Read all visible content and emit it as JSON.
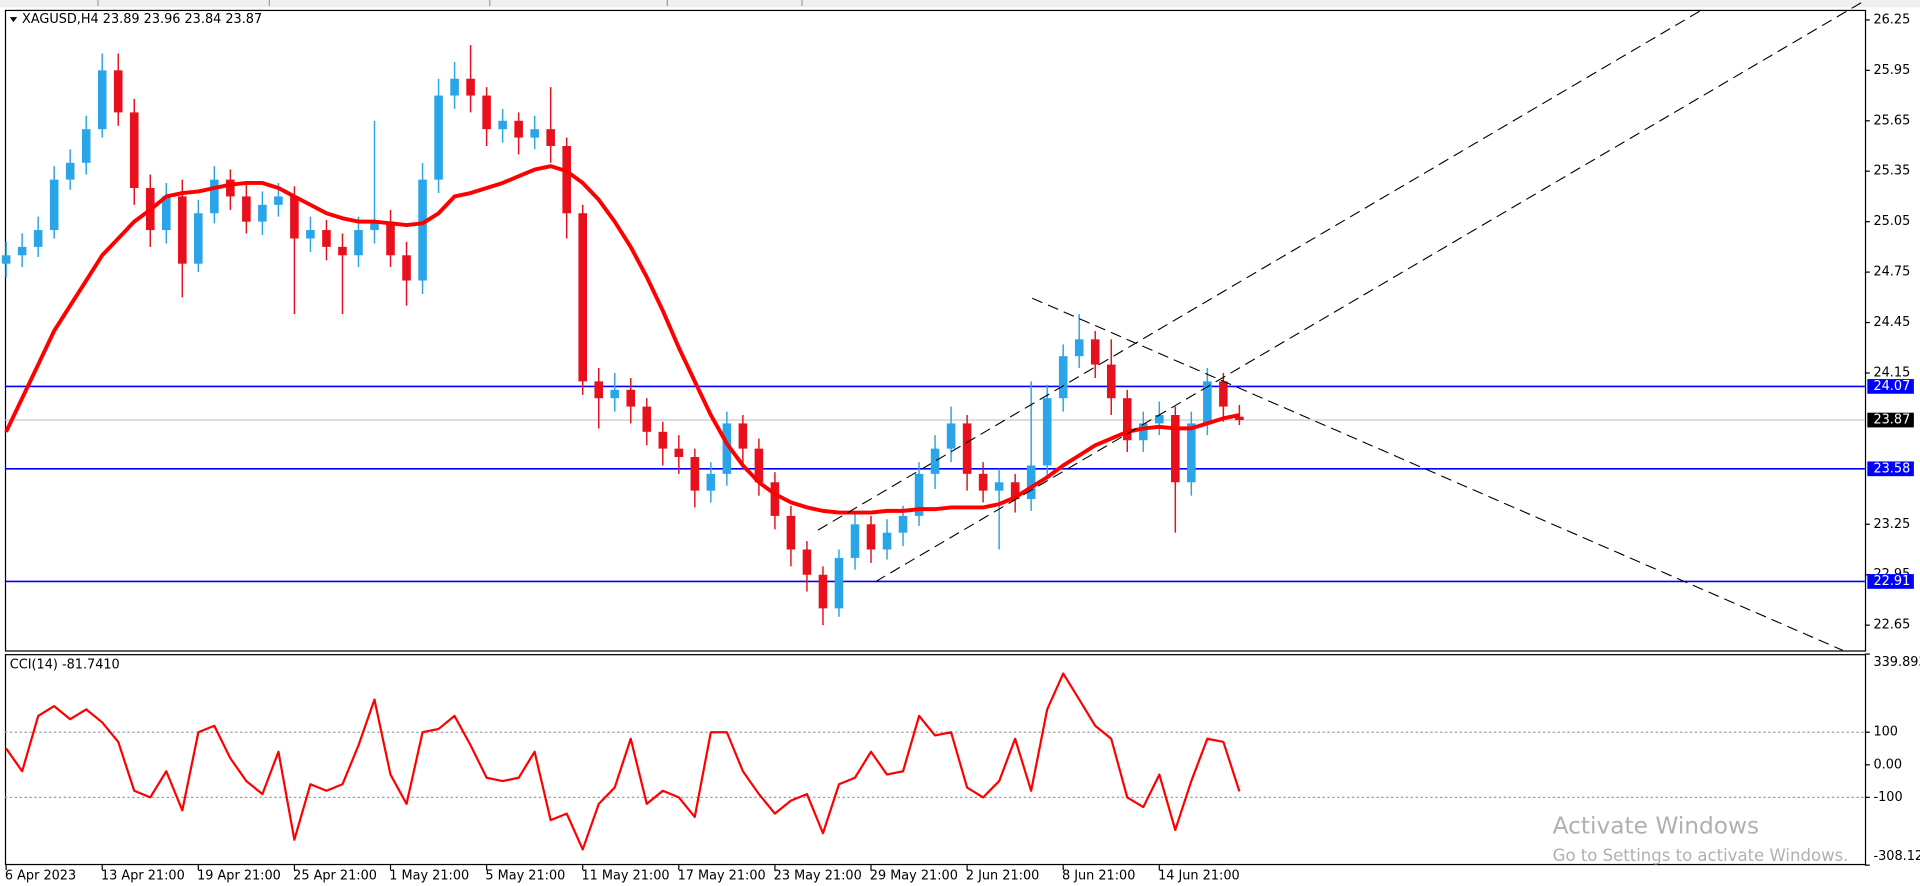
{
  "chart_data": [
    {
      "type": "candlestick",
      "title": "XAGUSD,H4 23.89 23.96 23.84 23.87",
      "categories": [
        "6 Apr 2023",
        null,
        null,
        null,
        null,
        null,
        "13 Apr 21:00",
        null,
        null,
        null,
        null,
        null,
        "19 Apr 21:00",
        null,
        null,
        null,
        null,
        null,
        "25 Apr 21:00",
        null,
        null,
        null,
        null,
        null,
        "1 May 21:00",
        null,
        null,
        null,
        null,
        null,
        "5 May 21:00",
        null,
        null,
        null,
        null,
        null,
        "11 May 21:00",
        null,
        null,
        null,
        null,
        null,
        "17 May 21:00",
        null,
        null,
        null,
        null,
        null,
        "23 May 21:00",
        null,
        null,
        null,
        null,
        null,
        "29 May 21:00",
        null,
        null,
        null,
        null,
        null,
        "2 Jun 21:00",
        null,
        null,
        null,
        null,
        null,
        "8 Jun 21:00",
        null,
        null,
        null,
        null,
        null,
        "14 Jun 21:00",
        null,
        null,
        null,
        null,
        null
      ],
      "open": [
        24.8,
        24.85,
        24.9,
        25.0,
        25.3,
        25.4,
        25.6,
        25.95,
        25.7,
        25.25,
        25.0,
        25.2,
        24.8,
        25.1,
        25.3,
        25.2,
        25.05,
        25.15,
        25.2,
        24.95,
        25.0,
        24.9,
        24.85,
        25.0,
        25.05,
        24.85,
        24.7,
        25.3,
        25.8,
        25.9,
        25.8,
        25.6,
        25.65,
        25.55,
        25.6,
        25.5,
        25.1,
        24.1,
        24.0,
        24.05,
        23.95,
        23.8,
        23.7,
        23.65,
        23.45,
        23.55,
        23.85,
        23.7,
        23.5,
        23.3,
        23.1,
        22.95,
        22.75,
        23.05,
        23.25,
        23.1,
        23.2,
        23.3,
        23.55,
        23.7,
        23.85,
        23.55,
        23.45,
        23.5,
        23.4,
        23.6,
        24.0,
        24.25,
        24.35,
        24.2,
        24.0,
        23.75,
        23.85,
        23.9,
        23.5,
        23.85,
        24.1,
        23.89
      ],
      "high": [
        24.93,
        24.98,
        25.08,
        25.38,
        25.48,
        25.68,
        26.05,
        26.05,
        25.78,
        25.33,
        25.28,
        25.3,
        25.18,
        25.38,
        25.36,
        25.28,
        25.23,
        25.28,
        25.26,
        25.08,
        25.06,
        24.98,
        25.08,
        25.65,
        25.12,
        24.93,
        25.4,
        25.9,
        26.0,
        26.1,
        25.85,
        25.72,
        25.7,
        25.68,
        25.85,
        25.55,
        25.15,
        24.18,
        24.15,
        24.12,
        24.0,
        23.86,
        23.78,
        23.7,
        23.62,
        23.92,
        23.9,
        23.76,
        23.56,
        23.36,
        23.15,
        23.0,
        23.1,
        23.32,
        23.3,
        23.28,
        23.36,
        23.62,
        23.78,
        23.95,
        23.9,
        23.62,
        23.58,
        23.55,
        24.1,
        24.08,
        24.32,
        24.5,
        24.4,
        24.35,
        24.05,
        23.92,
        23.98,
        23.95,
        23.92,
        24.18,
        24.15,
        23.96
      ],
      "low": [
        24.72,
        24.78,
        24.84,
        24.95,
        25.24,
        25.33,
        25.55,
        25.62,
        25.15,
        24.9,
        24.92,
        24.6,
        24.75,
        25.04,
        25.12,
        24.98,
        24.97,
        25.08,
        24.5,
        24.87,
        24.82,
        24.5,
        24.78,
        24.92,
        24.78,
        24.55,
        24.62,
        25.22,
        25.72,
        25.7,
        25.5,
        25.52,
        25.45,
        25.48,
        25.4,
        24.95,
        24.02,
        23.82,
        23.92,
        23.85,
        23.72,
        23.6,
        23.55,
        23.35,
        23.38,
        23.48,
        23.6,
        23.42,
        23.22,
        23.0,
        22.85,
        22.65,
        22.7,
        22.98,
        23.02,
        23.04,
        23.12,
        23.24,
        23.46,
        23.62,
        23.45,
        23.38,
        23.1,
        23.32,
        23.33,
        23.52,
        23.92,
        24.18,
        24.12,
        23.9,
        23.68,
        23.68,
        23.78,
        23.2,
        23.42,
        23.78,
        23.86,
        23.84
      ],
      "close": [
        24.85,
        24.9,
        25.0,
        25.3,
        25.4,
        25.6,
        25.95,
        25.7,
        25.25,
        25.0,
        25.2,
        24.8,
        25.1,
        25.3,
        25.2,
        25.05,
        25.15,
        25.2,
        24.95,
        25.0,
        24.9,
        24.85,
        25.0,
        25.05,
        24.85,
        24.7,
        25.3,
        25.8,
        25.9,
        25.8,
        25.6,
        25.65,
        25.55,
        25.6,
        25.5,
        25.1,
        24.1,
        24.0,
        24.05,
        23.95,
        23.8,
        23.7,
        23.65,
        23.45,
        23.55,
        23.85,
        23.7,
        23.5,
        23.3,
        23.1,
        22.95,
        22.75,
        23.05,
        23.25,
        23.1,
        23.2,
        23.3,
        23.55,
        23.7,
        23.85,
        23.55,
        23.45,
        23.5,
        23.4,
        23.6,
        24.0,
        24.25,
        24.35,
        24.2,
        24.0,
        23.75,
        23.85,
        23.9,
        23.5,
        23.85,
        24.1,
        23.95,
        23.87
      ],
      "up_color": "#2aa5e8",
      "down_color": "#e8101c",
      "ma": {
        "color": "#ff0000",
        "values": [
          23.8,
          24.0,
          24.2,
          24.4,
          24.55,
          24.7,
          24.85,
          24.95,
          25.05,
          25.12,
          25.2,
          25.22,
          25.23,
          25.25,
          25.27,
          25.28,
          25.28,
          25.25,
          25.2,
          25.15,
          25.1,
          25.07,
          25.05,
          25.05,
          25.04,
          25.03,
          25.04,
          25.1,
          25.2,
          25.22,
          25.25,
          25.28,
          25.32,
          25.36,
          25.38,
          25.35,
          25.28,
          25.18,
          25.05,
          24.9,
          24.72,
          24.52,
          24.3,
          24.1,
          23.9,
          23.73,
          23.6,
          23.5,
          23.43,
          23.38,
          23.35,
          23.33,
          23.32,
          23.32,
          23.32,
          23.33,
          23.33,
          23.34,
          23.34,
          23.35,
          23.35,
          23.35,
          23.37,
          23.41,
          23.47,
          23.53,
          23.6,
          23.66,
          23.72,
          23.76,
          23.8,
          23.82,
          23.83,
          23.82,
          23.82,
          23.85,
          23.88,
          23.9
        ]
      },
      "ylim": [
        22.5,
        26.31
      ],
      "yticks": [
        26.25,
        25.95,
        25.65,
        25.35,
        25.05,
        24.75,
        24.45,
        24.15,
        23.25,
        22.95,
        22.65
      ],
      "levels": [
        {
          "value": 24.07,
          "color": "#0000ff"
        },
        {
          "value": 23.58,
          "color": "#0000ff"
        },
        {
          "value": 22.91,
          "color": "#0000ff"
        }
      ],
      "current_price": {
        "value": 23.87,
        "color": "#c0c0c0"
      }
    },
    {
      "type": "line",
      "title": "CCI(14) -81.7410",
      "color": "#ff0000",
      "values": [
        50,
        -20,
        150,
        180,
        140,
        170,
        130,
        70,
        -80,
        -100,
        -20,
        -140,
        100,
        120,
        20,
        -50,
        -90,
        40,
        -230,
        -60,
        -80,
        -60,
        60,
        200,
        -30,
        -120,
        100,
        110,
        150,
        60,
        -40,
        -50,
        -40,
        40,
        -170,
        -150,
        -260,
        -120,
        -70,
        80,
        -120,
        -80,
        -100,
        -160,
        100,
        100,
        -20,
        -90,
        -150,
        -110,
        -90,
        -210,
        -60,
        -40,
        40,
        -30,
        -20,
        150,
        90,
        100,
        -70,
        -100,
        -50,
        80,
        -80,
        170,
        280,
        200,
        120,
        80,
        -100,
        -130,
        -30,
        -200,
        -50,
        80,
        70,
        -81.741
      ],
      "ylim": [
        -308.127,
        339.893
      ],
      "yticks": [
        339.893,
        100,
        {
          "value": 0,
          "label": "0.00"
        },
        -100,
        -308.127
      ],
      "levels": [
        100,
        -100
      ]
    }
  ],
  "watermark": {
    "title": "Activate Windows",
    "subtitle": "Go to Settings to activate Windows."
  }
}
